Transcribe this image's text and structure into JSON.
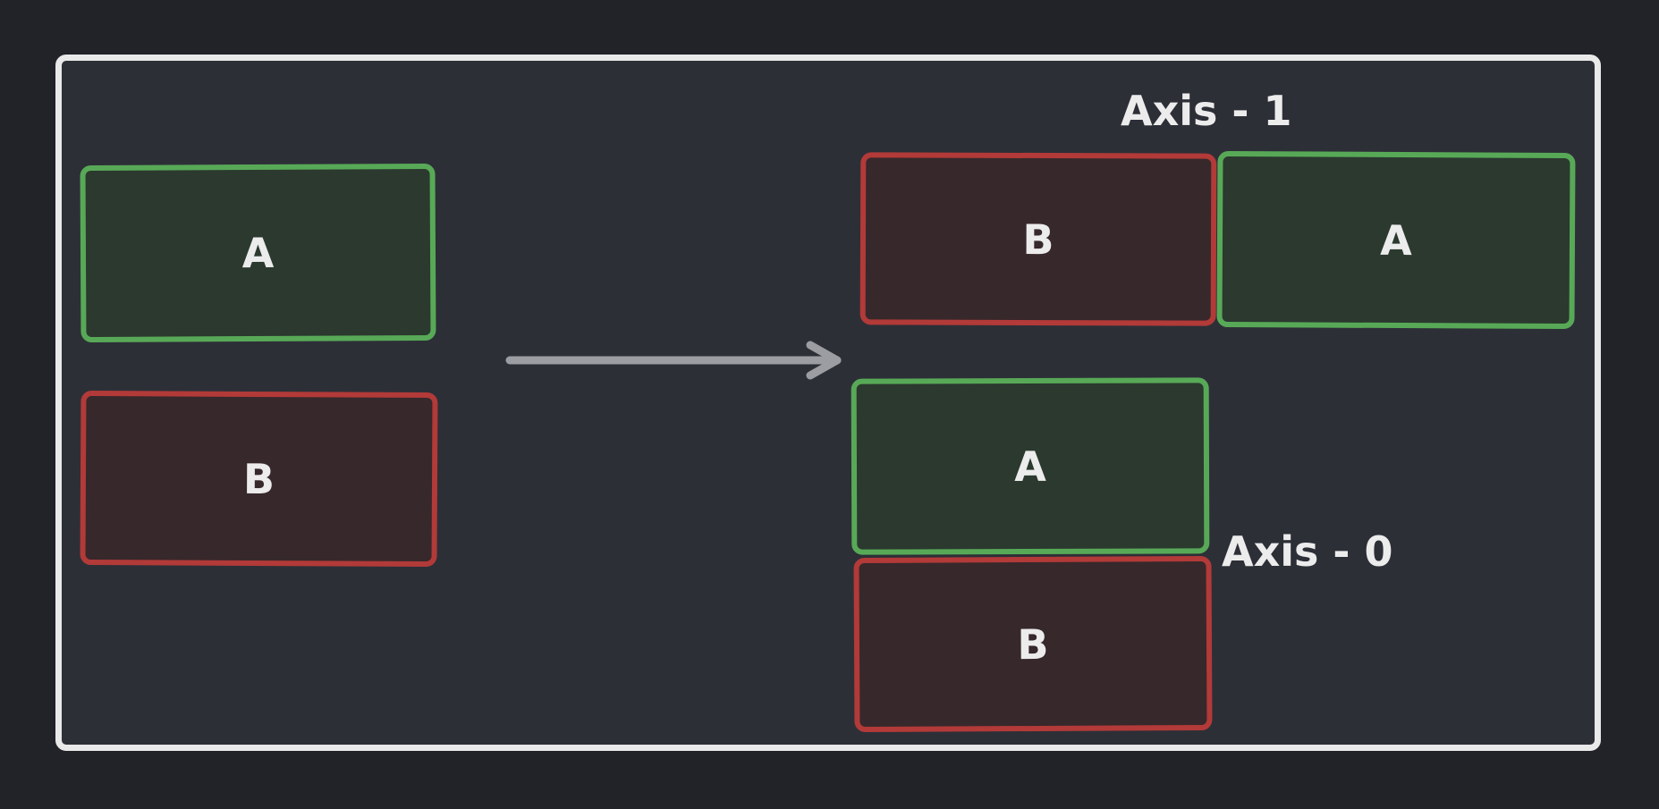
{
  "diagram": {
    "left_stack": {
      "top_block": {
        "label": "A",
        "color": "#58a957"
      },
      "bottom_block": {
        "label": "B",
        "color": "#b23a38"
      }
    },
    "arrow": {
      "color": "#9b9da3",
      "direction": "right"
    },
    "axis1": {
      "title": "Axis - 1",
      "first_block": {
        "label": "B",
        "color": "#b23a38"
      },
      "second_block": {
        "label": "A",
        "color": "#58a957"
      }
    },
    "axis0": {
      "title": "Axis - 0",
      "top_block": {
        "label": "A",
        "color": "#58a957"
      },
      "bottom_block": {
        "label": "B",
        "color": "#b23a38"
      }
    }
  }
}
